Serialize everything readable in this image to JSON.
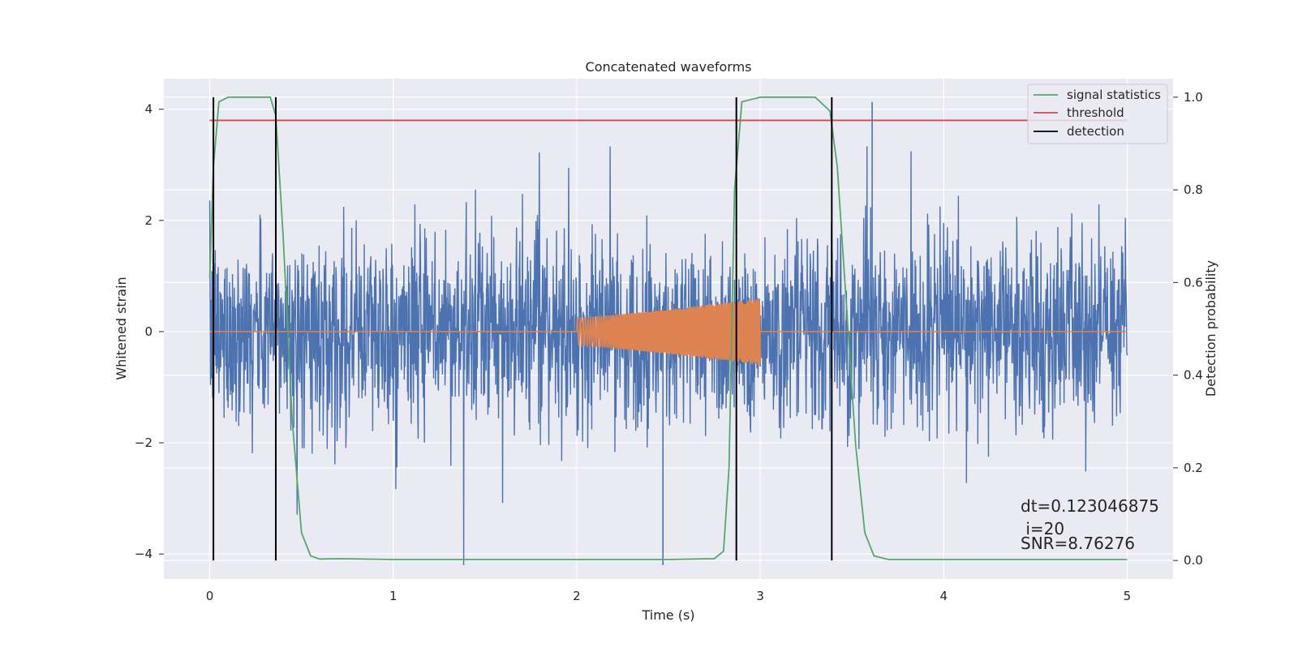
{
  "chart_data": {
    "type": "line",
    "title": "Concatenated waveforms",
    "xlabel": "Time (s)",
    "ylabel": "Whitened strain",
    "y2label": "Detection probability",
    "xlim": [
      -0.25,
      5.25
    ],
    "ylim": [
      -4.45,
      4.55
    ],
    "y2lim": [
      -0.04,
      1.04
    ],
    "x_ticks": [
      0,
      1,
      2,
      3,
      4,
      5
    ],
    "x_tick_labels": [
      "0",
      "1",
      "2",
      "3",
      "4",
      "5"
    ],
    "y_ticks": [
      4,
      2,
      0,
      -2,
      -4
    ],
    "y_tick_labels": [
      "4",
      "2",
      "0",
      "−2",
      "−4"
    ],
    "y2_ticks": [
      1.0,
      0.8,
      0.6,
      0.4,
      0.2,
      0.0
    ],
    "y2_tick_labels": [
      "1.0",
      "0.8",
      "0.6",
      "0.4",
      "0.2",
      "0.0"
    ],
    "grid": true,
    "legend_position": "top-right",
    "series": [
      {
        "name": "strain",
        "color": "#4c72b0",
        "axis": "left",
        "kind": "noise",
        "x_range": [
          0,
          5
        ],
        "std": 0.85,
        "max": 4.13,
        "min": -4.2
      },
      {
        "name": "waveform",
        "color": "#dd8452",
        "axis": "left",
        "kind": "chirp",
        "x_range": [
          2.0,
          3.0
        ],
        "amplitude_start": 0.25,
        "amplitude_end": 0.6
      },
      {
        "name": "signal statistics",
        "color": "#55a868",
        "axis": "right",
        "x": [
          0.0,
          0.02,
          0.05,
          0.1,
          0.2,
          0.33,
          0.36,
          0.4,
          0.45,
          0.5,
          0.55,
          0.6,
          0.7,
          1.0,
          1.5,
          2.0,
          2.5,
          2.75,
          2.8,
          2.83,
          2.86,
          2.9,
          3.0,
          3.3,
          3.38,
          3.42,
          3.47,
          3.52,
          3.57,
          3.62,
          3.7,
          4.0,
          4.5,
          5.0
        ],
        "values": [
          0.61,
          0.85,
          0.99,
          1.0,
          1.0,
          1.0,
          0.96,
          0.7,
          0.3,
          0.06,
          0.01,
          0.003,
          0.004,
          0.002,
          0.002,
          0.002,
          0.002,
          0.004,
          0.02,
          0.2,
          0.8,
          0.99,
          1.0,
          1.0,
          0.97,
          0.85,
          0.55,
          0.25,
          0.06,
          0.01,
          0.002,
          0.002,
          0.002,
          0.002
        ]
      },
      {
        "name": "threshold",
        "color": "#c44e52",
        "axis": "right",
        "x": [
          0.0,
          5.0
        ],
        "values": [
          0.95,
          0.95
        ]
      },
      {
        "name": "detection",
        "color": "#000000",
        "axis": "right",
        "x": [
          0.02,
          0.36,
          2.87,
          3.39
        ],
        "range": [
          0.0,
          1.0
        ]
      }
    ],
    "legend": [
      {
        "label": "signal statistics",
        "color": "#55a868"
      },
      {
        "label": "threshold",
        "color": "#c44e52"
      },
      {
        "label": "detection",
        "color": "#000000"
      }
    ],
    "annotations": {
      "dt": "dt=0.123046875",
      "i": " i=20",
      "snr": "SNR=8.76276"
    },
    "colors": {
      "axes_bg": "#eaeaf2",
      "grid": "#ffffff"
    }
  }
}
